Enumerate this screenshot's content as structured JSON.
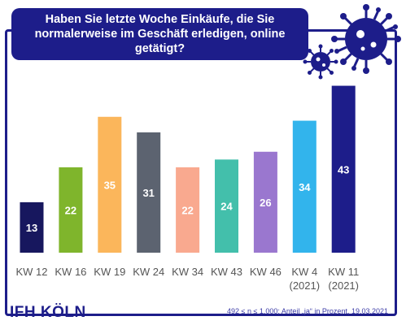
{
  "title": "Haben Sie letzte Woche Einkäufe, die Sie normalerweise im Geschäft erledigen, online getätigt?",
  "logo": "IFH KÖLN",
  "footnote": "492 ≤ n ≤ 1.000; Anteil „ja“ in Prozent, 19.03.2021",
  "colors": {
    "frame": "#1d1d8a",
    "virus": "#1d1d8a"
  },
  "chart_data": {
    "type": "bar",
    "categories": [
      [
        "KW 12"
      ],
      [
        "KW 16"
      ],
      [
        "KW 19"
      ],
      [
        "KW 24"
      ],
      [
        "KW 34"
      ],
      [
        "KW 43"
      ],
      [
        "KW 46"
      ],
      [
        "KW 4",
        "(2021)"
      ],
      [
        "KW 11",
        "(2021)"
      ]
    ],
    "values": [
      13,
      22,
      35,
      31,
      22,
      24,
      26,
      34,
      43
    ],
    "colors": [
      "#17175e",
      "#7fb52c",
      "#fbb65b",
      "#5c6370",
      "#f9a98f",
      "#43bfab",
      "#9a77cf",
      "#32b4ec",
      "#1d1d8a"
    ],
    "ylim": [
      0,
      45
    ],
    "data_labels": true
  }
}
